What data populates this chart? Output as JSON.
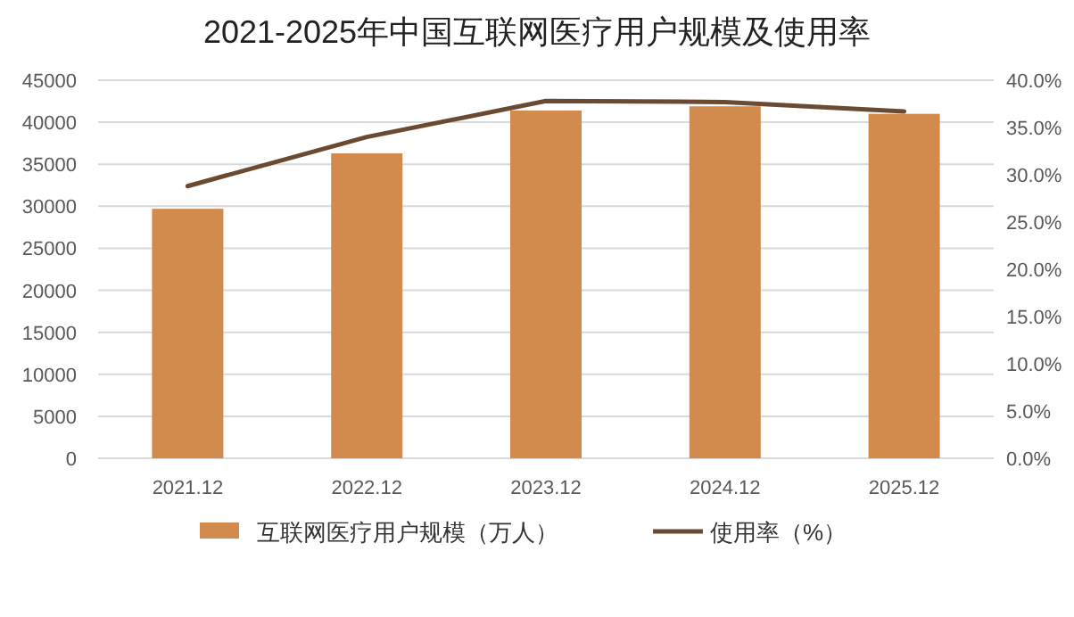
{
  "chart_data": {
    "type": "bar",
    "title": "2021-2025年中国互联网医疗用户规模及使用率",
    "categories": [
      "2021.12",
      "2022.12",
      "2023.12",
      "2024.12",
      "2025.12"
    ],
    "series": [
      {
        "name": "互联网医疗用户规模（万人）",
        "color": "#d38b4d",
        "values": [
          29700,
          36300,
          41400,
          41900,
          41000
        ]
      },
      {
        "name": "使用率（%）",
        "type": "line",
        "axis": "y2",
        "color": "#6b4a32",
        "values": [
          28.8,
          34.0,
          37.8,
          37.7,
          36.7
        ]
      }
    ],
    "ylim": [
      0,
      45000
    ],
    "yticks": [
      0,
      5000,
      10000,
      15000,
      20000,
      25000,
      30000,
      35000,
      40000,
      45000
    ],
    "y2lim": [
      0,
      40
    ],
    "y2ticks": [
      {
        "value": 0,
        "label": "0.0%"
      },
      {
        "value": 5,
        "label": "5.0%"
      },
      {
        "value": 10,
        "label": "10.0%"
      },
      {
        "value": 15,
        "label": "15.0%"
      },
      {
        "value": 20,
        "label": "20.0%"
      },
      {
        "value": 25,
        "label": "25.0%"
      },
      {
        "value": 30,
        "label": "30.0%"
      },
      {
        "value": 35,
        "label": "35.0%"
      },
      {
        "value": 40,
        "label": "40.0%"
      }
    ],
    "grid": "y",
    "legend": "bottom",
    "marker": "none",
    "line_style": "solid"
  }
}
